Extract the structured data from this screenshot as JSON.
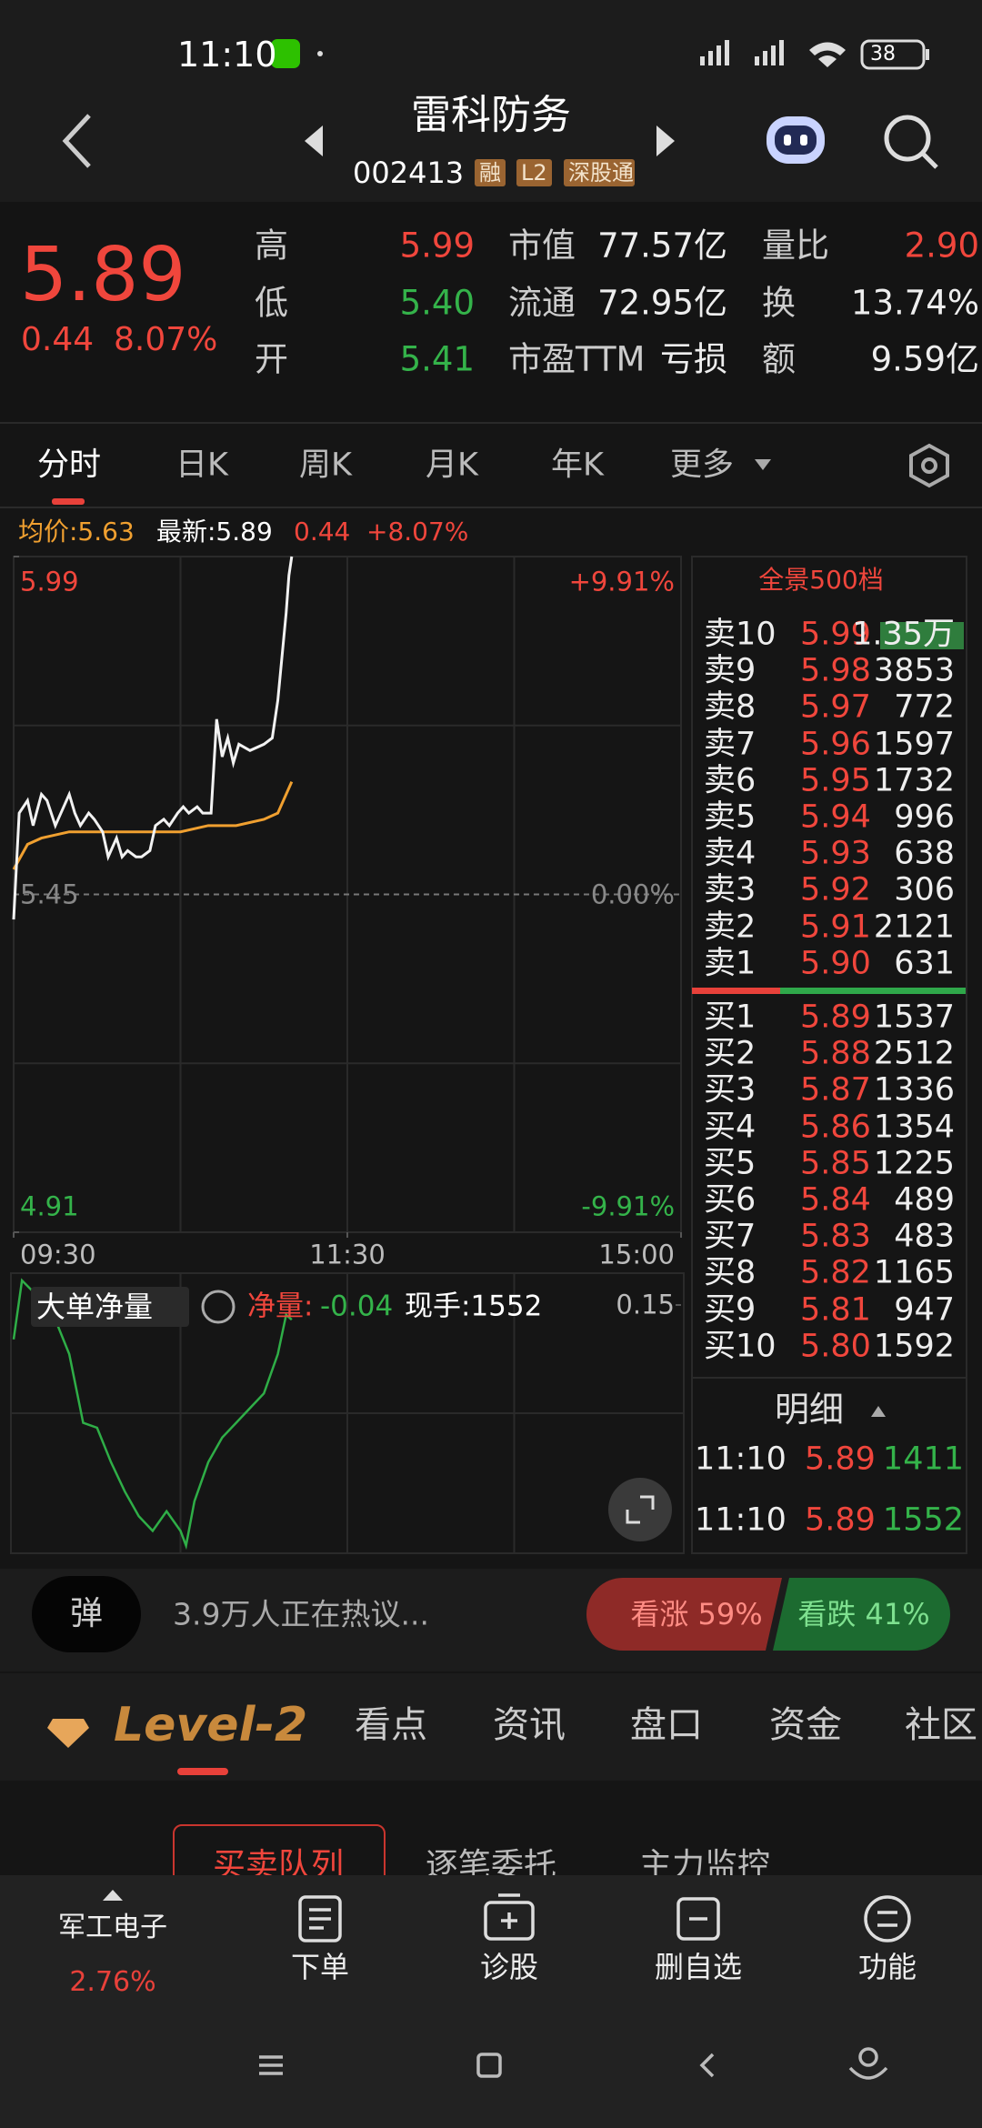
{
  "status_bar": {
    "time": "11:10",
    "battery": "38"
  },
  "header": {
    "title": "雷科防务",
    "code": "002413",
    "tags": [
      "融",
      "L2",
      "深股通"
    ]
  },
  "quote": {
    "price": "5.89",
    "change": "0.44",
    "change_pct": "8.07%",
    "stats": [
      {
        "label": "高",
        "value": "5.99",
        "color": "#f0463c"
      },
      {
        "label": "低",
        "value": "5.40",
        "color": "#34b34a"
      },
      {
        "label": "开",
        "value": "5.41",
        "color": "#34b34a"
      },
      {
        "label": "市值",
        "value": "77.57亿"
      },
      {
        "label": "流通",
        "value": "72.95亿"
      },
      {
        "label": "市盈TTM",
        "value": "亏损"
      },
      {
        "label": "量比",
        "value": "2.90",
        "color": "#f0463c"
      },
      {
        "label": "换",
        "value": "13.74%"
      },
      {
        "label": "额",
        "value": "9.59亿"
      }
    ]
  },
  "chart_tabs": [
    "分时",
    "日K",
    "周K",
    "月K",
    "年K",
    "更多"
  ],
  "info_line": {
    "avg": "均价:5.63",
    "latest": "最新:5.89",
    "change": "0.44",
    "change_pct": "+8.07%"
  },
  "intraday": {
    "ylim": [
      4.91,
      5.99
    ],
    "yticks": [
      5.99,
      5.45,
      4.91
    ],
    "pct_labels": [
      "+9.91%",
      "0.00%",
      "-9.91%"
    ],
    "xlim": [
      0,
      240
    ],
    "xticks": [
      {
        "value": 0,
        "label": "09:30"
      },
      {
        "value": 120,
        "label": "11:30"
      },
      {
        "value": 240,
        "label": "15:00"
      }
    ],
    "x": [
      0,
      2,
      5,
      7,
      10,
      12,
      15,
      17,
      20,
      22,
      24,
      27,
      29,
      32,
      34,
      37,
      39,
      41,
      44,
      46,
      49,
      51,
      54,
      56,
      59,
      61,
      63,
      66,
      68,
      71,
      73,
      75,
      77,
      79,
      81,
      85,
      90,
      93,
      95,
      98,
      99,
      100
    ],
    "price": [
      5.41,
      5.58,
      5.6,
      5.56,
      5.61,
      5.6,
      5.56,
      5.58,
      5.61,
      5.58,
      5.56,
      5.58,
      5.57,
      5.55,
      5.51,
      5.54,
      5.51,
      5.52,
      5.51,
      5.51,
      5.52,
      5.56,
      5.57,
      5.56,
      5.58,
      5.59,
      5.58,
      5.59,
      5.58,
      5.58,
      5.73,
      5.67,
      5.7,
      5.66,
      5.69,
      5.68,
      5.69,
      5.7,
      5.76,
      5.9,
      5.96,
      5.99
    ],
    "avg_x": [
      0,
      5,
      10,
      20,
      30,
      40,
      50,
      60,
      70,
      80,
      90,
      95,
      100
    ],
    "avg": [
      5.49,
      5.53,
      5.54,
      5.55,
      5.55,
      5.55,
      5.55,
      5.55,
      5.56,
      5.56,
      5.57,
      5.58,
      5.63
    ]
  },
  "net_volume": {
    "selector": "大单净量",
    "label": "净量:",
    "value": "-0.04",
    "hand": "现手:1552",
    "ylim": [
      -0.35,
      0.2
    ],
    "yticks": [
      0.15
    ],
    "x": [
      0,
      3,
      10,
      15,
      20,
      25,
      30,
      35,
      40,
      45,
      50,
      55,
      60,
      62,
      65,
      70,
      75,
      80,
      85,
      90,
      95,
      98,
      100
    ],
    "values": [
      0.08,
      0.2,
      0.16,
      0.12,
      0.05,
      -0.09,
      -0.1,
      -0.17,
      -0.23,
      -0.28,
      -0.31,
      -0.27,
      -0.31,
      -0.34,
      -0.25,
      -0.17,
      -0.12,
      -0.09,
      -0.06,
      -0.03,
      0.05,
      0.13,
      0.12
    ]
  },
  "order_book": {
    "title": "全景500档",
    "asks": [
      {
        "label": "卖10",
        "price": "5.99",
        "volume": "1.35万"
      },
      {
        "label": "卖9",
        "price": "5.98",
        "volume": "3853"
      },
      {
        "label": "卖8",
        "price": "5.97",
        "volume": "772"
      },
      {
        "label": "卖7",
        "price": "5.96",
        "volume": "1597"
      },
      {
        "label": "卖6",
        "price": "5.95",
        "volume": "1732"
      },
      {
        "label": "卖5",
        "price": "5.94",
        "volume": "996"
      },
      {
        "label": "卖4",
        "price": "5.93",
        "volume": "638"
      },
      {
        "label": "卖3",
        "price": "5.92",
        "volume": "306"
      },
      {
        "label": "卖2",
        "price": "5.91",
        "volume": "2121"
      },
      {
        "label": "卖1",
        "price": "5.90",
        "volume": "631"
      }
    ],
    "bids": [
      {
        "label": "买1",
        "price": "5.89",
        "volume": "1537"
      },
      {
        "label": "买2",
        "price": "5.88",
        "volume": "2512"
      },
      {
        "label": "买3",
        "price": "5.87",
        "volume": "1336"
      },
      {
        "label": "买4",
        "price": "5.86",
        "volume": "1354"
      },
      {
        "label": "买5",
        "price": "5.85",
        "volume": "1225"
      },
      {
        "label": "买6",
        "price": "5.84",
        "volume": "489"
      },
      {
        "label": "买7",
        "price": "5.83",
        "volume": "483"
      },
      {
        "label": "买8",
        "price": "5.82",
        "volume": "1165"
      },
      {
        "label": "买9",
        "price": "5.81",
        "volume": "947"
      },
      {
        "label": "买10",
        "price": "5.80",
        "volume": "1592"
      }
    ]
  },
  "details": {
    "title": "明细",
    "trades": [
      {
        "time": "11:10",
        "price": "5.89",
        "volume": "1411"
      },
      {
        "time": "11:10",
        "price": "5.89",
        "volume": "1552"
      }
    ]
  },
  "discussion": {
    "icon": "弹",
    "text": "3.9万人正在热议...",
    "bull": "看涨 59%",
    "bear": "看跌 41%"
  },
  "level2_tabs": [
    "Level-2",
    "看点",
    "资讯",
    "盘口",
    "资金",
    "社区"
  ],
  "sub_tabs": [
    "买卖队列",
    "逐笔委托",
    "主力监控"
  ],
  "bottom_bar": {
    "sector": "军工电子",
    "sector_change": "2.76%",
    "actions": [
      "下单",
      "诊股",
      "删自选",
      "功能"
    ]
  }
}
